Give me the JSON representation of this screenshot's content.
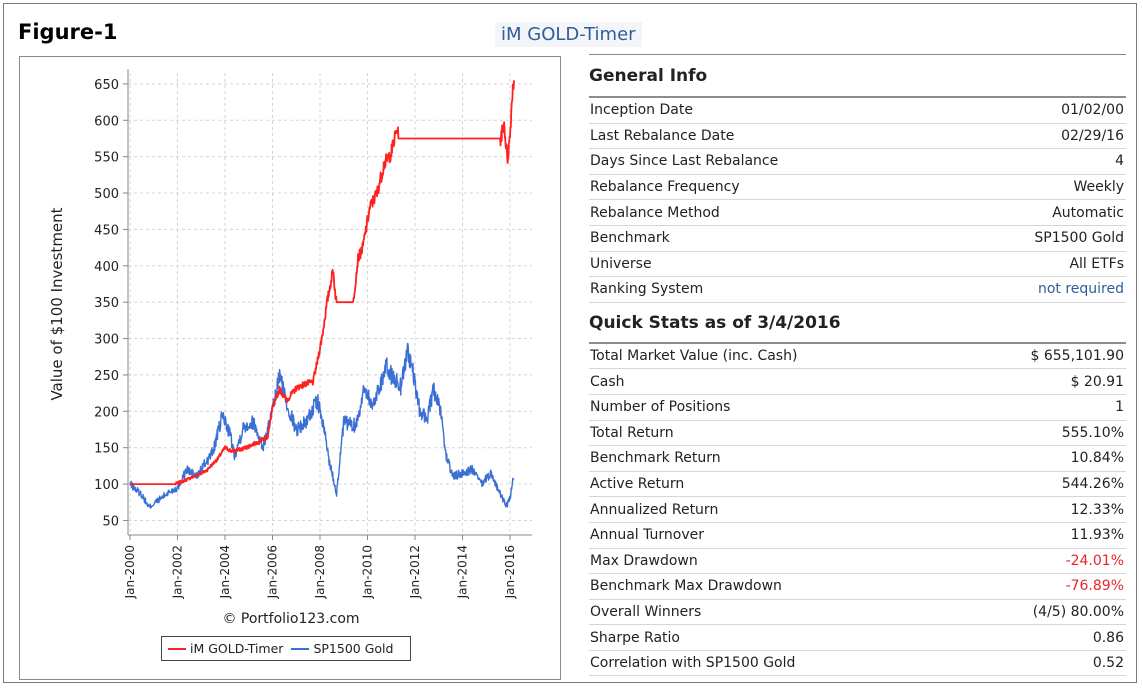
{
  "figure_label": "Figure-1",
  "app_title": "iM GOLD-Timer",
  "copyright": "© Portfolio123.com",
  "general_info": {
    "title": "General Info",
    "rows": [
      {
        "label": "Inception Date",
        "value": "01/02/00"
      },
      {
        "label": "Last Rebalance Date",
        "value": "02/29/16"
      },
      {
        "label": "Days Since Last Rebalance",
        "value": "4"
      },
      {
        "label": "Rebalance Frequency",
        "value": "Weekly"
      },
      {
        "label": "Rebalance Method",
        "value": "Automatic"
      },
      {
        "label": "Benchmark",
        "value": "SP1500 Gold"
      },
      {
        "label": "Universe",
        "value": "All ETFs"
      },
      {
        "label": "Ranking System",
        "value": "not required"
      }
    ]
  },
  "quick_stats": {
    "title": "Quick Stats as of 3/4/2016",
    "rows": [
      {
        "label": "Total Market Value (inc. Cash)",
        "value": "$ 655,101.90"
      },
      {
        "label": "Cash",
        "value": "$ 20.91"
      },
      {
        "label": "Number of Positions",
        "value": "1"
      },
      {
        "label": "Total Return",
        "value": "555.10%"
      },
      {
        "label": "Benchmark Return",
        "value": "10.84%"
      },
      {
        "label": "Active Return",
        "value": "544.26%"
      },
      {
        "label": "Annualized Return",
        "value": "12.33%"
      },
      {
        "label": "Annual Turnover",
        "value": "11.93%"
      },
      {
        "label": "Max Drawdown",
        "value": "-24.01%"
      },
      {
        "label": "Benchmark Max Drawdown",
        "value": "-76.89%"
      },
      {
        "label": "Overall Winners",
        "value": "(4/5) 80.00%"
      },
      {
        "label": "Sharpe Ratio",
        "value": "0.86"
      },
      {
        "label": "Correlation with SP1500 Gold",
        "value": "0.52"
      }
    ]
  },
  "colors": {
    "timer": "#ff2020",
    "gold": "#3b6fd4",
    "negative": "#e8232b",
    "link": "#2f5f96",
    "grid": "#d4d4d4"
  },
  "chart_data": {
    "type": "line",
    "title": "",
    "xlabel": "",
    "ylabel": "Value of $100 Investment",
    "ylim": [
      30,
      665
    ],
    "xlim": [
      2000,
      2016.2
    ],
    "yticks": [
      50,
      100,
      150,
      200,
      250,
      300,
      350,
      400,
      450,
      500,
      550,
      600,
      650
    ],
    "xticks": [
      {
        "x": 2000,
        "label": "Jan-2000"
      },
      {
        "x": 2002,
        "label": "Jan-2002"
      },
      {
        "x": 2004,
        "label": "Jan-2004"
      },
      {
        "x": 2006,
        "label": "Jan-2006"
      },
      {
        "x": 2008,
        "label": "Jan-2008"
      },
      {
        "x": 2010,
        "label": "Jan-2010"
      },
      {
        "x": 2012,
        "label": "Jan-2012"
      },
      {
        "x": 2014,
        "label": "Jan-2014"
      },
      {
        "x": 2016,
        "label": "Jan-2016"
      }
    ],
    "grid": true,
    "legend_position": "bottom",
    "series": [
      {
        "name": "iM GOLD-Timer",
        "color_key": "timer",
        "points": [
          [
            2000.0,
            100
          ],
          [
            2001.9,
            100
          ],
          [
            2002.3,
            105
          ],
          [
            2002.8,
            112
          ],
          [
            2003.2,
            118
          ],
          [
            2003.7,
            135
          ],
          [
            2004.0,
            150
          ],
          [
            2004.3,
            145
          ],
          [
            2004.7,
            148
          ],
          [
            2005.0,
            152
          ],
          [
            2005.4,
            158
          ],
          [
            2005.8,
            165
          ],
          [
            2006.0,
            205
          ],
          [
            2006.3,
            230
          ],
          [
            2006.6,
            215
          ],
          [
            2007.0,
            232
          ],
          [
            2007.4,
            238
          ],
          [
            2007.7,
            240
          ],
          [
            2007.9,
            270
          ],
          [
            2008.1,
            305
          ],
          [
            2008.3,
            350
          ],
          [
            2008.55,
            395
          ],
          [
            2008.65,
            360
          ],
          [
            2008.7,
            350
          ],
          [
            2009.4,
            350
          ],
          [
            2009.6,
            410
          ],
          [
            2009.8,
            425
          ],
          [
            2010.1,
            480
          ],
          [
            2010.4,
            500
          ],
          [
            2010.7,
            540
          ],
          [
            2011.0,
            555
          ],
          [
            2011.25,
            590
          ],
          [
            2011.3,
            575
          ],
          [
            2015.6,
            575
          ],
          [
            2015.75,
            595
          ],
          [
            2015.85,
            560
          ],
          [
            2015.9,
            548
          ],
          [
            2016.0,
            580
          ],
          [
            2016.1,
            640
          ],
          [
            2016.17,
            655
          ]
        ]
      },
      {
        "name": "SP1500 Gold",
        "color_key": "gold",
        "points": [
          [
            2000.0,
            100
          ],
          [
            2000.5,
            85
          ],
          [
            2000.8,
            68
          ],
          [
            2001.2,
            78
          ],
          [
            2001.6,
            88
          ],
          [
            2002.0,
            95
          ],
          [
            2002.4,
            120
          ],
          [
            2002.8,
            110
          ],
          [
            2003.2,
            130
          ],
          [
            2003.5,
            145
          ],
          [
            2003.9,
            195
          ],
          [
            2004.2,
            170
          ],
          [
            2004.4,
            140
          ],
          [
            2004.8,
            180
          ],
          [
            2005.2,
            185
          ],
          [
            2005.6,
            150
          ],
          [
            2006.0,
            200
          ],
          [
            2006.3,
            250
          ],
          [
            2006.6,
            210
          ],
          [
            2007.0,
            175
          ],
          [
            2007.4,
            185
          ],
          [
            2007.9,
            215
          ],
          [
            2008.2,
            170
          ],
          [
            2008.4,
            130
          ],
          [
            2008.7,
            88
          ],
          [
            2009.0,
            185
          ],
          [
            2009.5,
            180
          ],
          [
            2009.9,
            235
          ],
          [
            2010.2,
            205
          ],
          [
            2010.5,
            235
          ],
          [
            2010.8,
            260
          ],
          [
            2011.1,
            245
          ],
          [
            2011.4,
            235
          ],
          [
            2011.7,
            285
          ],
          [
            2011.9,
            255
          ],
          [
            2012.2,
            200
          ],
          [
            2012.5,
            190
          ],
          [
            2012.8,
            230
          ],
          [
            2013.1,
            195
          ],
          [
            2013.3,
            140
          ],
          [
            2013.6,
            110
          ],
          [
            2014.0,
            115
          ],
          [
            2014.4,
            120
          ],
          [
            2014.8,
            100
          ],
          [
            2015.2,
            115
          ],
          [
            2015.6,
            85
          ],
          [
            2015.85,
            70
          ],
          [
            2016.0,
            80
          ],
          [
            2016.1,
            100
          ],
          [
            2016.15,
            108
          ]
        ]
      }
    ]
  }
}
